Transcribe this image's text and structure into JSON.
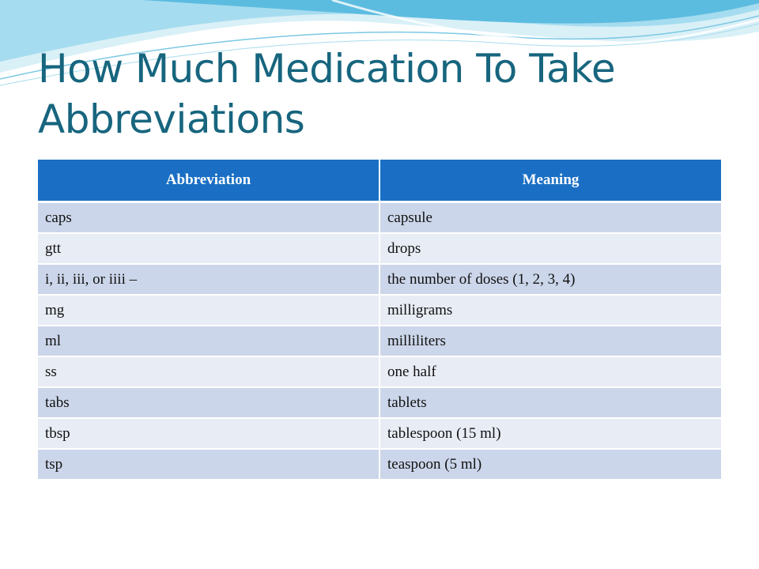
{
  "slide": {
    "title_line1": "How Much Medication To Take",
    "title_line2": "Abbreviations"
  },
  "table": {
    "headers": [
      "Abbreviation",
      "Meaning"
    ],
    "rows": [
      [
        "caps",
        "capsule"
      ],
      [
        "gtt",
        "drops"
      ],
      [
        "i, ii, iii, or iiii –",
        "the number of doses (1, 2, 3, 4)"
      ],
      [
        "mg",
        "milligrams"
      ],
      [
        "ml",
        "milliliters"
      ],
      [
        "ss",
        "one half"
      ],
      [
        "tabs",
        "tablets"
      ],
      [
        "tbsp",
        "tablespoon (15 ml)"
      ],
      [
        "tsp",
        "teaspoon (5 ml)"
      ]
    ]
  },
  "colors": {
    "title": "#17657e",
    "header_bg": "#1a6fc4",
    "row_odd": "#ccd6ea",
    "row_even": "#e8ecf5",
    "wave_light": "#bfe6f2",
    "wave_mid": "#8fd3ea",
    "wave_dark": "#4fb3d9"
  }
}
